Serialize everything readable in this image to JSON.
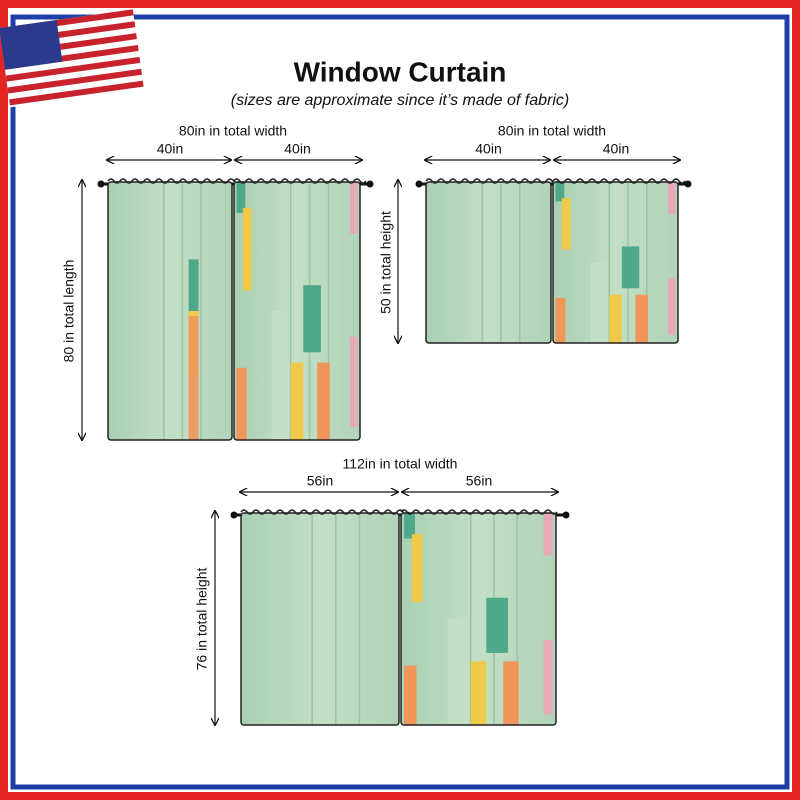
{
  "title": "Window Curtain",
  "subtitle": "(sizes are approximate since it’s made of fabric)",
  "panels": [
    {
      "total_width": "80in in total width",
      "left_width": "40in",
      "right_width": "40in",
      "height": "80 in total length"
    },
    {
      "total_width": "80in in total width",
      "left_width": "40in",
      "right_width": "40in",
      "height": "50 in total height"
    },
    {
      "total_width": "112in in total width",
      "left_width": "56in",
      "right_width": "56in",
      "height": "76 in total height"
    }
  ]
}
